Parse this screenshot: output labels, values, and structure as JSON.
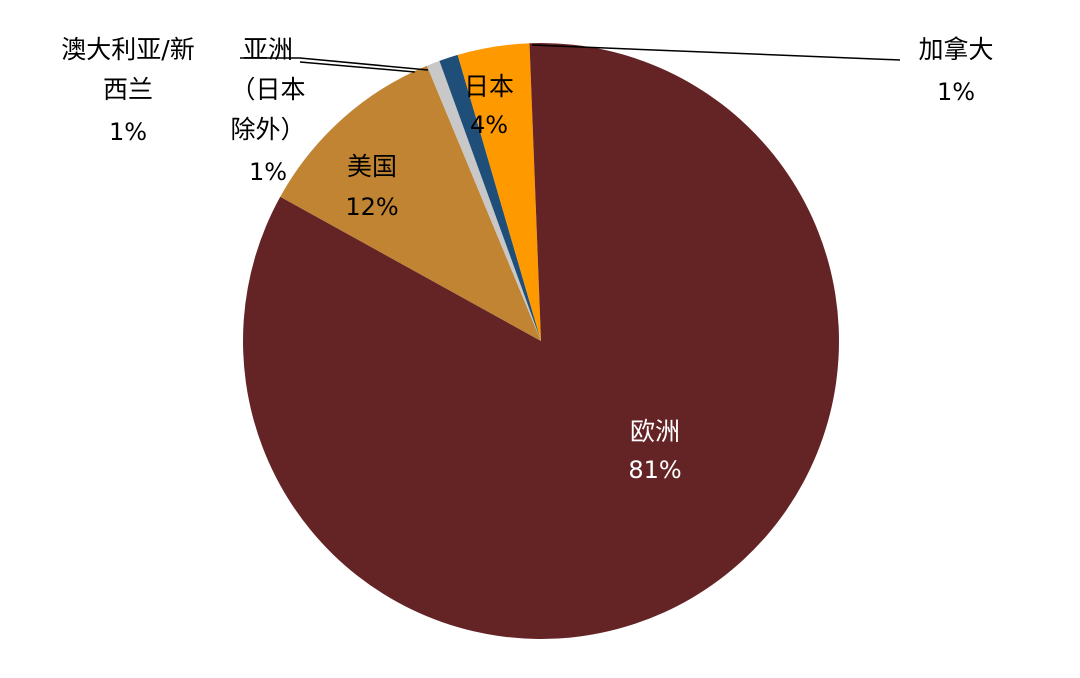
{
  "chart_data": {
    "type": "pie",
    "title": "",
    "slices": [
      {
        "label": "欧洲",
        "value": 81,
        "display": "81%",
        "color": "#642426"
      },
      {
        "label": "美国",
        "value": 12,
        "display": "12%",
        "color": "#C08433"
      },
      {
        "label": "澳大利亚/新西兰",
        "value": 1,
        "display": "1%",
        "color": "#C8C8C8"
      },
      {
        "label": "亚洲（日本除外）",
        "value": 1,
        "display": "1%",
        "color": "#1F4E79"
      },
      {
        "label": "日本",
        "value": 4,
        "display": "4%",
        "color": "#FF9900"
      },
      {
        "label": "加拿大",
        "value": 1,
        "display": "1%",
        "color": "#642426"
      }
    ],
    "label_lines": {
      "australia": [
        "澳大利亚/新",
        "西兰"
      ],
      "asia": [
        "亚洲",
        "（日本",
        "除外）"
      ]
    },
    "legend": "none"
  }
}
